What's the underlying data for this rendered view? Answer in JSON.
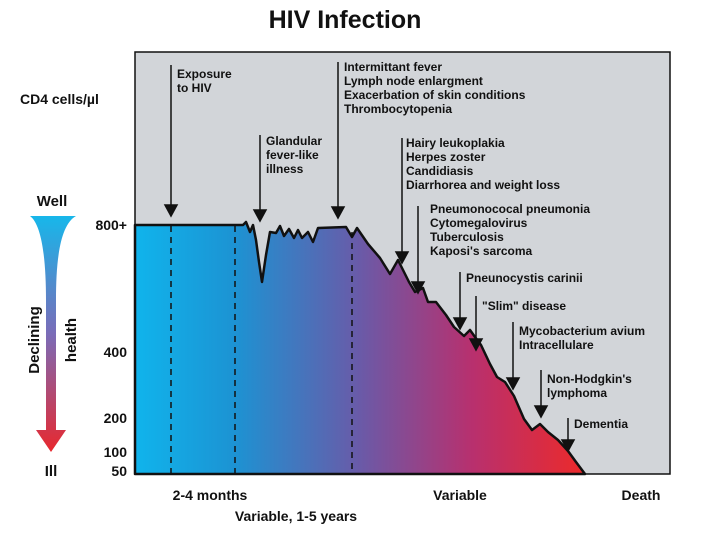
{
  "title": "HIV Infection",
  "y_axis": {
    "unit_label": "CD4 cells/µl",
    "ticks": [
      "800+",
      "400",
      "200",
      "100",
      "50"
    ]
  },
  "health_scale": {
    "top_label": "Well",
    "bottom_label": "Ill",
    "side_label_1": "Declining",
    "side_label_2": "health"
  },
  "annotations": [
    {
      "lines": [
        "Exposure",
        "to HIV"
      ]
    },
    {
      "lines": [
        "Glandular",
        "fever-like",
        "illness"
      ]
    },
    {
      "lines": [
        "Intermittant fever",
        "Lymph node enlargment",
        "Exacerbation of skin conditions",
        "Thrombocytopenia"
      ]
    },
    {
      "lines": [
        "Hairy leukoplakia",
        "Herpes zoster",
        "Candidiasis",
        "Diarrhorea and weight loss"
      ]
    },
    {
      "lines": [
        "Pneumonococal pneumonia",
        "Cytomegalovirus",
        "Tuberculosis",
        "Kaposi's sarcoma"
      ]
    },
    {
      "lines": [
        "Pneunocystis carinii"
      ]
    },
    {
      "lines": [
        "\"Slim\" disease"
      ]
    },
    {
      "lines": [
        "Mycobacterium avium",
        "Intracellulare"
      ]
    },
    {
      "lines": [
        "Non-Hodgkin's",
        "lymphoma"
      ]
    },
    {
      "lines": [
        "Dementia"
      ]
    }
  ],
  "x_axis": {
    "label_1": "2-4 months",
    "label_2": "Variable, 1-5 years",
    "label_3": "Variable",
    "label_4": "Death"
  },
  "colors": {
    "panel": "#d2d5d9",
    "well": "#17b7ea",
    "mid": "#7a5aa8",
    "ill": "#e8282e"
  }
}
